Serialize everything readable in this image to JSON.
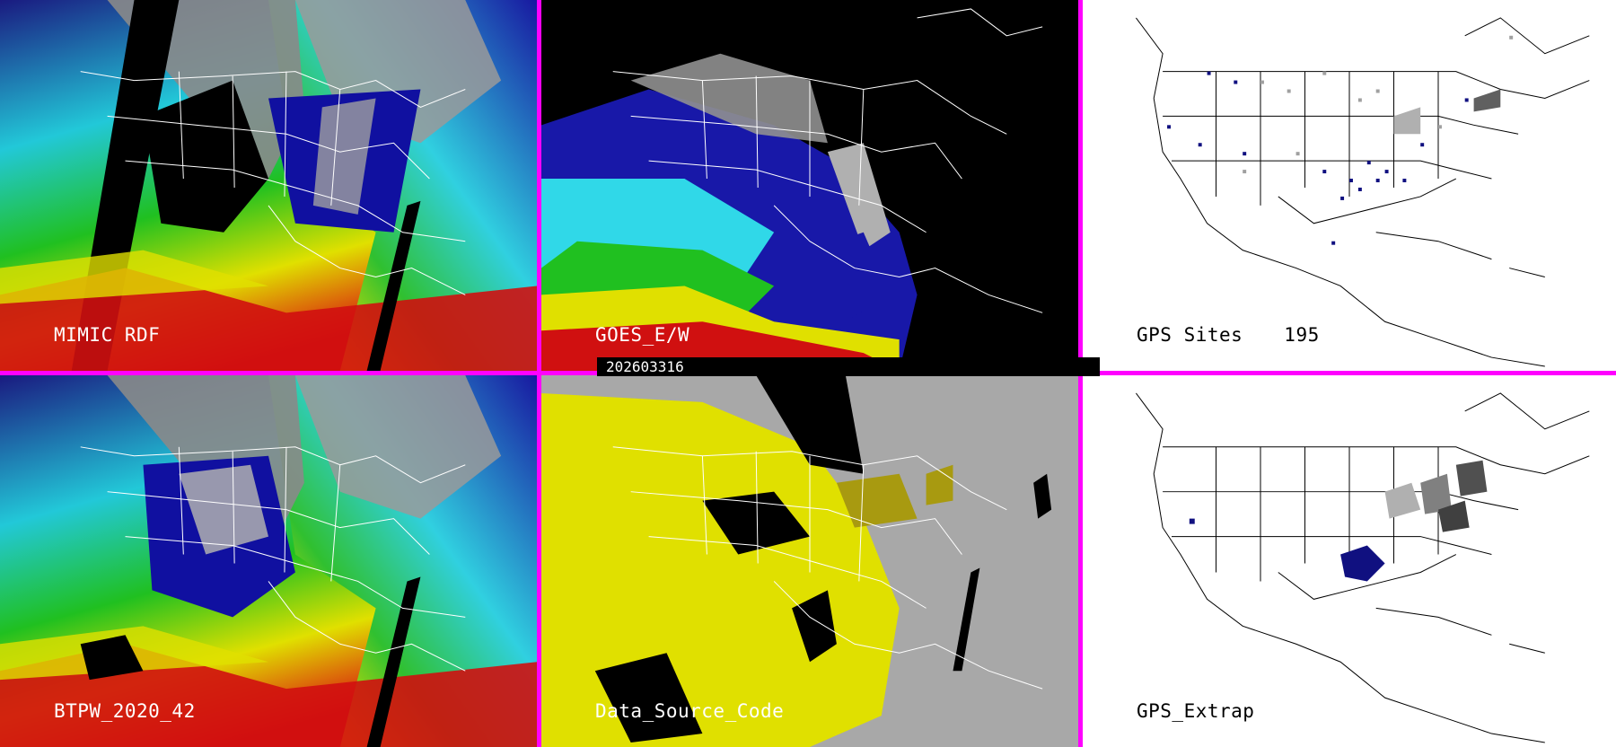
{
  "panels": [
    {
      "id": "p1",
      "label": "MIMIC RDF",
      "style": "tpw-color"
    },
    {
      "id": "p2",
      "label": "GOES_E/W",
      "style": "goes-black"
    },
    {
      "id": "p3",
      "label": "GPS Sites",
      "count": "195",
      "style": "gps-white"
    },
    {
      "id": "p4",
      "label": "BTPW_2020_42",
      "style": "tpw-color"
    },
    {
      "id": "p5",
      "label": "Data_Source_Code",
      "style": "source-gray"
    },
    {
      "id": "p6",
      "label": "GPS_Extrap",
      "style": "gps-white"
    }
  ],
  "timestamp": "202603316",
  "colors": {
    "divider": "#ff00ff",
    "humid_red": "#d91010",
    "yellow": "#e8e000",
    "green": "#22cc22",
    "cyan": "#33e0e8",
    "blue": "#1010b0",
    "gray": "#a8a8a8",
    "olive": "#a89a10",
    "navy": "#101080"
  }
}
